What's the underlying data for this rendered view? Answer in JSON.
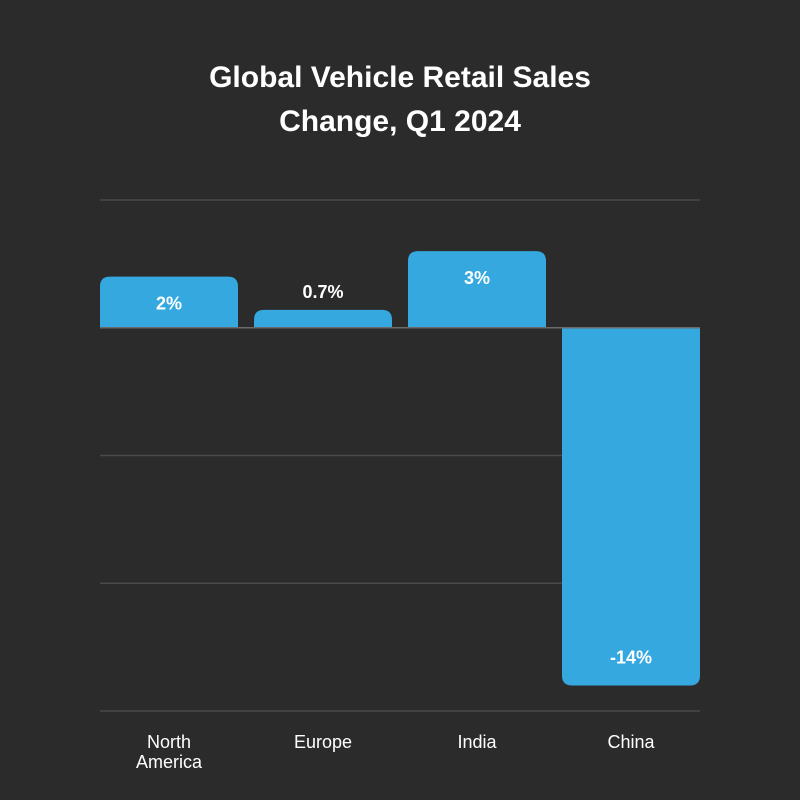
{
  "chart_data": {
    "type": "bar",
    "title_lines": [
      "Global Vehicle Retail Sales",
      "Change, Q1 2024"
    ],
    "categories": [
      [
        "North",
        "America"
      ],
      [
        "Europe"
      ],
      [
        "India"
      ],
      [
        "China"
      ]
    ],
    "values": [
      2,
      0.7,
      3,
      -14
    ],
    "data_labels": [
      "2%",
      "0.7%",
      "3%",
      "-14%"
    ],
    "ylim": [
      -15,
      5
    ],
    "grid_values": [
      5,
      0,
      -5,
      -10,
      -15
    ],
    "grid": true,
    "xlabel": "",
    "ylabel": "",
    "bar_color": "#35a8df",
    "grid_color": "#4a4a4a",
    "zero_line_color": "#6a6a6a"
  }
}
